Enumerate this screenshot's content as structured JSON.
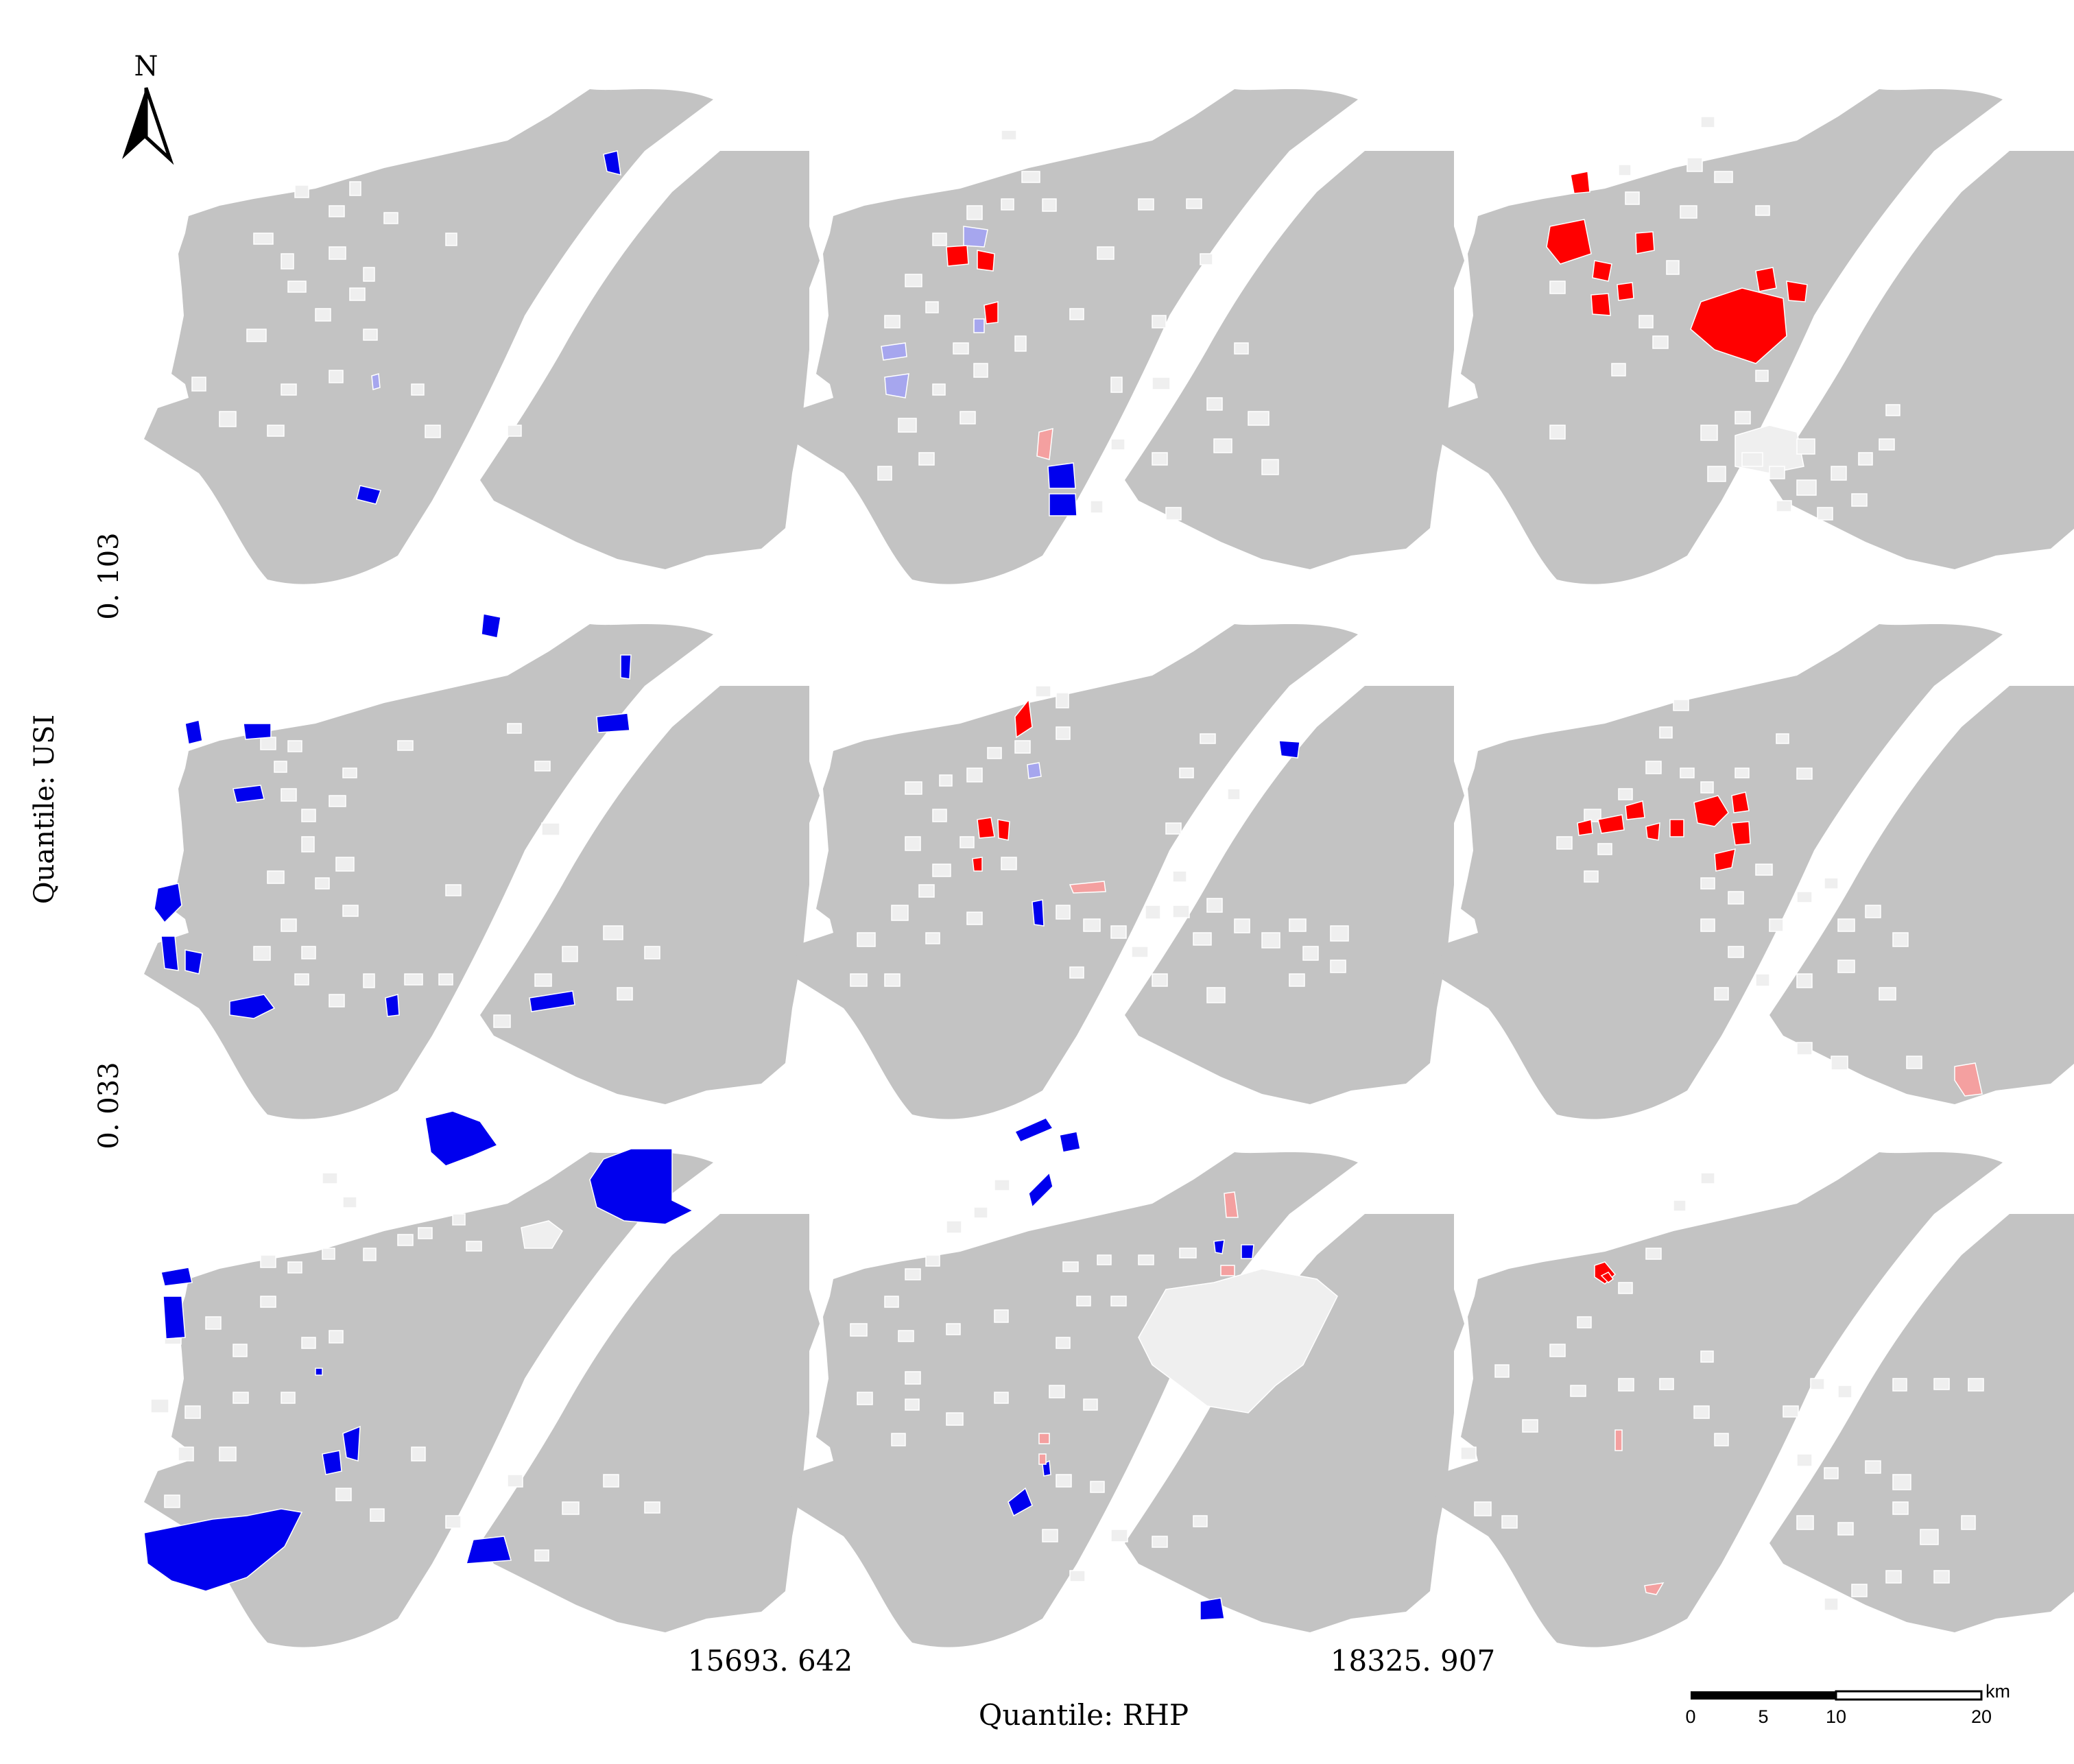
{
  "north_arrow": {
    "label": "N"
  },
  "axes": {
    "y_title": "Quantile: USI",
    "y_breaks": [
      "0. 103",
      "0. 033"
    ],
    "x_title": "Quantile: RHP",
    "x_breaks": [
      "15693. 642",
      "18325. 907"
    ]
  },
  "scale_bar": {
    "unit": "km",
    "ticks": [
      "0",
      "5",
      "10",
      "20"
    ]
  },
  "colors": {
    "land": "#c3c3c3",
    "non_significant": "#efefef",
    "high_high": "#ff0000",
    "low_low": "#0000ee",
    "high_low": "#f4a0a0",
    "low_high": "#a6a6ee",
    "river": "#ffffff"
  },
  "panels": [
    {
      "row": 0,
      "col": 0,
      "row_class": "USI > 0. 103",
      "col_class": "RHP < 15693. 642",
      "classes": [
        "non_significant",
        "low_low",
        "low_high"
      ]
    },
    {
      "row": 0,
      "col": 1,
      "row_class": "USI > 0. 103",
      "col_class": "15693. 642 - 18325. 907",
      "classes": [
        "non_significant",
        "high_high",
        "low_low",
        "high_low",
        "low_high"
      ]
    },
    {
      "row": 0,
      "col": 2,
      "row_class": "USI > 0. 103",
      "col_class": "RHP > 18325. 907",
      "classes": [
        "non_significant",
        "high_high"
      ]
    },
    {
      "row": 1,
      "col": 0,
      "row_class": "0. 033 - 0. 103",
      "col_class": "RHP < 15693. 642",
      "classes": [
        "non_significant",
        "low_low"
      ]
    },
    {
      "row": 1,
      "col": 1,
      "row_class": "0. 033 - 0. 103",
      "col_class": "15693. 642 - 18325. 907",
      "classes": [
        "non_significant",
        "high_high",
        "low_low",
        "high_low",
        "low_high"
      ]
    },
    {
      "row": 1,
      "col": 2,
      "row_class": "0. 033 - 0. 103",
      "col_class": "RHP > 18325. 907",
      "classes": [
        "non_significant",
        "high_high",
        "high_low"
      ]
    },
    {
      "row": 2,
      "col": 0,
      "row_class": "USI < 0. 033",
      "col_class": "RHP < 15693. 642",
      "classes": [
        "non_significant",
        "low_low"
      ]
    },
    {
      "row": 2,
      "col": 1,
      "row_class": "USI < 0. 033",
      "col_class": "15693. 642 - 18325. 907",
      "classes": [
        "non_significant",
        "low_low",
        "high_low"
      ]
    },
    {
      "row": 2,
      "col": 2,
      "row_class": "USI < 0. 033",
      "col_class": "RHP > 18325. 907",
      "classes": [
        "non_significant",
        "high_high",
        "high_low"
      ]
    }
  ]
}
